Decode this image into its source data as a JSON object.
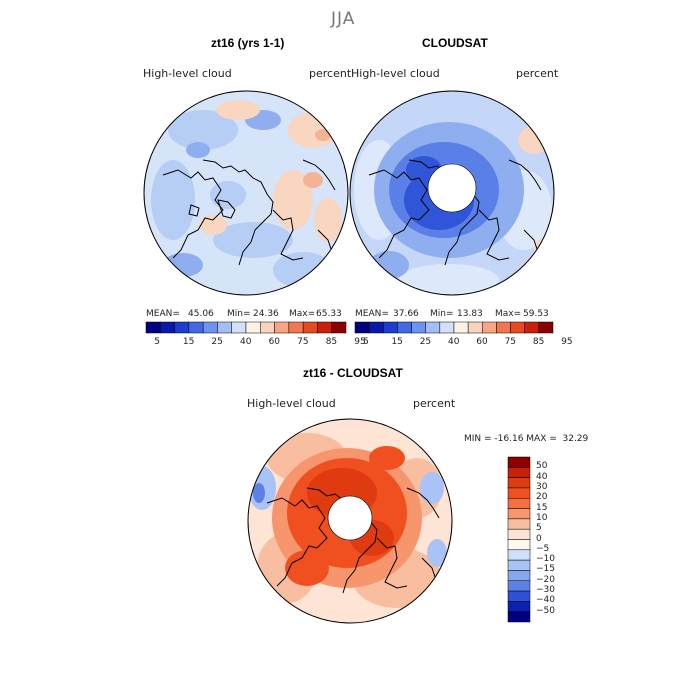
{
  "page": {
    "title": "JJA"
  },
  "panels": [
    {
      "title": "zt16 (yrs 1-1)",
      "variable": "High-level cloud",
      "units": "percent",
      "stats": {
        "mean_label": "MEAN=",
        "mean": "45.06",
        "min_label": "Min=",
        "min": "24.36",
        "max_label": "Max=",
        "max": "65.33"
      },
      "has_pole_hole": false
    },
    {
      "title": "CLOUDSAT",
      "variable": "High-level cloud",
      "units": "percent",
      "stats": {
        "mean_label": "MEAN=",
        "mean": "37.66",
        "min_label": "Min=",
        "min": "13.83",
        "max_label": "Max=",
        "max": "59.53"
      },
      "has_pole_hole": true
    },
    {
      "title": "zt16 - CLOUDSAT",
      "variable": "High-level cloud",
      "units": "percent",
      "stats": {
        "text": "MIN = -16.16 MAX =  32.29"
      },
      "has_pole_hole": true
    }
  ],
  "colorbar_abs": {
    "labels": [
      "5",
      "15",
      "25",
      "40",
      "60",
      "75",
      "85",
      "95"
    ],
    "colors": [
      "#00007f",
      "#0a1aa8",
      "#1e3cd0",
      "#4169e1",
      "#6e94f0",
      "#a3bdf7",
      "#d2e0fb",
      "#fff2e6",
      "#fad2bd",
      "#f7a582",
      "#f07850",
      "#e54a22",
      "#c8200a",
      "#8b0000"
    ]
  },
  "colorbar_diff": {
    "labels": [
      "50",
      "40",
      "30",
      "20",
      "15",
      "10",
      "5",
      "0",
      "-5",
      "-10",
      "-15",
      "-20",
      "-30",
      "-40",
      "-50"
    ],
    "colors": [
      "#8b0000",
      "#c8200a",
      "#e03a10",
      "#f05020",
      "#f56f43",
      "#f7956d",
      "#f9bda0",
      "#fde4d4",
      "#fff8f0",
      "#cfe0fb",
      "#a9c3f6",
      "#86a6f0",
      "#5d82e6",
      "#2f50d8",
      "#0a20b0",
      "#00007f"
    ]
  },
  "colors": {
    "land_outline": "#000000",
    "base_light": "#d6e4fa",
    "title_gray": "#777777"
  }
}
